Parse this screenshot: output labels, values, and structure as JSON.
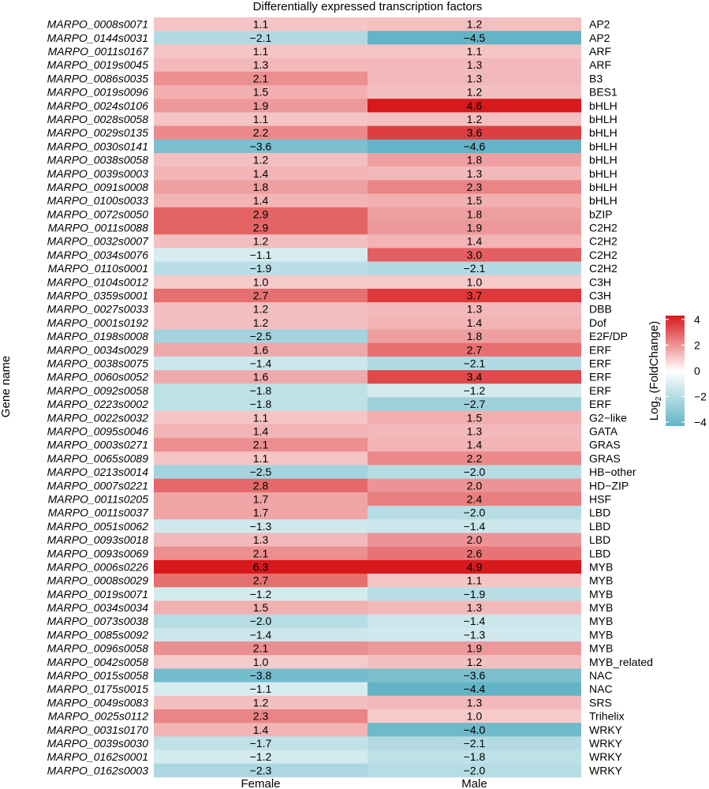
{
  "chart_data": {
    "type": "heatmap",
    "title": "Differentially expressed transcription factors",
    "ylabel": "Gene name",
    "columns": [
      "Female",
      "Male"
    ],
    "rows": [
      {
        "gene": "MARPO_0008s0071",
        "family": "AP2",
        "values": [
          1.1,
          1.2
        ]
      },
      {
        "gene": "MARPO_0144s0031",
        "family": "AP2",
        "values": [
          -2.1,
          -4.5
        ]
      },
      {
        "gene": "MARPO_0011s0167",
        "family": "ARF",
        "values": [
          1.1,
          1.1
        ]
      },
      {
        "gene": "MARPO_0019s0045",
        "family": "ARF",
        "values": [
          1.3,
          1.3
        ]
      },
      {
        "gene": "MARPO_0086s0035",
        "family": "B3",
        "values": [
          2.1,
          1.3
        ]
      },
      {
        "gene": "MARPO_0019s0096",
        "family": "BES1",
        "values": [
          1.5,
          1.2
        ]
      },
      {
        "gene": "MARPO_0024s0106",
        "family": "bHLH",
        "values": [
          1.9,
          4.6
        ]
      },
      {
        "gene": "MARPO_0028s0058",
        "family": "bHLH",
        "values": [
          1.1,
          1.2
        ]
      },
      {
        "gene": "MARPO_0029s0135",
        "family": "bHLH",
        "values": [
          2.2,
          3.6
        ]
      },
      {
        "gene": "MARPO_0030s0141",
        "family": "bHLH",
        "values": [
          -3.6,
          -4.6
        ]
      },
      {
        "gene": "MARPO_0038s0058",
        "family": "bHLH",
        "values": [
          1.2,
          1.8
        ]
      },
      {
        "gene": "MARPO_0039s0003",
        "family": "bHLH",
        "values": [
          1.4,
          1.3
        ]
      },
      {
        "gene": "MARPO_0091s0008",
        "family": "bHLH",
        "values": [
          1.8,
          2.3
        ]
      },
      {
        "gene": "MARPO_0100s0033",
        "family": "bHLH",
        "values": [
          1.4,
          1.5
        ]
      },
      {
        "gene": "MARPO_0072s0050",
        "family": "bZIP",
        "values": [
          2.9,
          1.8
        ]
      },
      {
        "gene": "MARPO_0011s0088",
        "family": "C2H2",
        "values": [
          2.9,
          1.9
        ]
      },
      {
        "gene": "MARPO_0032s0007",
        "family": "C2H2",
        "values": [
          1.2,
          1.4
        ]
      },
      {
        "gene": "MARPO_0034s0076",
        "family": "C2H2",
        "values": [
          -1.1,
          3.0
        ]
      },
      {
        "gene": "MARPO_0110s0001",
        "family": "C2H2",
        "values": [
          -1.9,
          -2.1
        ]
      },
      {
        "gene": "MARPO_0104s0012",
        "family": "C3H",
        "values": [
          1.0,
          1.0
        ]
      },
      {
        "gene": "MARPO_0359s0001",
        "family": "C3H",
        "values": [
          2.7,
          3.7
        ]
      },
      {
        "gene": "MARPO_0027s0033",
        "family": "DBB",
        "values": [
          1.2,
          1.3
        ]
      },
      {
        "gene": "MARPO_0001s0192",
        "family": "Dof",
        "values": [
          1.2,
          1.4
        ]
      },
      {
        "gene": "MARPO_0198s0008",
        "family": "E2F/DP",
        "values": [
          -2.5,
          1.8
        ]
      },
      {
        "gene": "MARPO_0034s0029",
        "family": "ERF",
        "values": [
          1.6,
          2.7
        ]
      },
      {
        "gene": "MARPO_0038s0075",
        "family": "ERF",
        "values": [
          -1.4,
          -2.1
        ]
      },
      {
        "gene": "MARPO_0060s0052",
        "family": "ERF",
        "values": [
          1.6,
          3.4
        ]
      },
      {
        "gene": "MARPO_0092s0058",
        "family": "ERF",
        "values": [
          -1.8,
          -1.2
        ]
      },
      {
        "gene": "MARPO_0223s0002",
        "family": "ERF",
        "values": [
          -1.8,
          -2.7
        ]
      },
      {
        "gene": "MARPO_0022s0032",
        "family": "G2−like",
        "values": [
          1.1,
          1.5
        ]
      },
      {
        "gene": "MARPO_0095s0046",
        "family": "GATA",
        "values": [
          1.4,
          1.3
        ]
      },
      {
        "gene": "MARPO_0003s0271",
        "family": "GRAS",
        "values": [
          2.1,
          1.4
        ]
      },
      {
        "gene": "MARPO_0065s0089",
        "family": "GRAS",
        "values": [
          1.1,
          2.2
        ]
      },
      {
        "gene": "MARPO_0213s0014",
        "family": "HB−other",
        "values": [
          -2.5,
          -2.0
        ]
      },
      {
        "gene": "MARPO_0007s0221",
        "family": "HD−ZIP",
        "values": [
          2.8,
          2.0
        ]
      },
      {
        "gene": "MARPO_0011s0205",
        "family": "HSF",
        "values": [
          1.7,
          2.4
        ]
      },
      {
        "gene": "MARPO_0011s0037",
        "family": "LBD",
        "values": [
          1.7,
          -2.0
        ]
      },
      {
        "gene": "MARPO_0051s0062",
        "family": "LBD",
        "values": [
          -1.3,
          -1.4
        ]
      },
      {
        "gene": "MARPO_0093s0018",
        "family": "LBD",
        "values": [
          1.3,
          2.0
        ]
      },
      {
        "gene": "MARPO_0093s0069",
        "family": "LBD",
        "values": [
          2.1,
          2.6
        ]
      },
      {
        "gene": "MARPO_0006s0226",
        "family": "MYB",
        "values": [
          6.3,
          4.9
        ]
      },
      {
        "gene": "MARPO_0008s0029",
        "family": "MYB",
        "values": [
          2.7,
          1.1
        ]
      },
      {
        "gene": "MARPO_0019s0071",
        "family": "MYB",
        "values": [
          -1.2,
          -1.9
        ]
      },
      {
        "gene": "MARPO_0034s0034",
        "family": "MYB",
        "values": [
          1.5,
          1.3
        ]
      },
      {
        "gene": "MARPO_0073s0038",
        "family": "MYB",
        "values": [
          -2.0,
          -1.4
        ]
      },
      {
        "gene": "MARPO_0085s0092",
        "family": "MYB",
        "values": [
          -1.4,
          -1.3
        ]
      },
      {
        "gene": "MARPO_0096s0058",
        "family": "MYB",
        "values": [
          2.1,
          1.9
        ]
      },
      {
        "gene": "MARPO_0042s0058",
        "family": "MYB_related",
        "values": [
          1.0,
          1.2
        ]
      },
      {
        "gene": "MARPO_0015s0058",
        "family": "NAC",
        "values": [
          -3.8,
          -3.6
        ]
      },
      {
        "gene": "MARPO_0175s0015",
        "family": "NAC",
        "values": [
          -1.1,
          -4.4
        ]
      },
      {
        "gene": "MARPO_0049s0083",
        "family": "SRS",
        "values": [
          1.2,
          1.3
        ]
      },
      {
        "gene": "MARPO_0025s0112",
        "family": "Trihelix",
        "values": [
          2.3,
          1.0
        ]
      },
      {
        "gene": "MARPO_0031s0170",
        "family": "WRKY",
        "values": [
          1.4,
          -4.0
        ]
      },
      {
        "gene": "MARPO_0039s0030",
        "family": "WRKY",
        "values": [
          -1.7,
          -2.1
        ]
      },
      {
        "gene": "MARPO_0162s0001",
        "family": "WRKY",
        "values": [
          -1.2,
          -1.8
        ]
      },
      {
        "gene": "MARPO_0162s0003",
        "family": "WRKY",
        "values": [
          -2.3,
          -2.0
        ]
      }
    ],
    "legend": {
      "title_base": "Log",
      "title_sub": "2",
      "title_rest": " (FoldChange)",
      "ticks": [
        "4",
        "2",
        "0",
        "−2",
        "−4"
      ],
      "tick_values": [
        4,
        2,
        0,
        -2,
        -4
      ],
      "range": [
        -4.3,
        4.3
      ],
      "placement": "right"
    },
    "colors": {
      "high": "#d7191c",
      "mid": "#ffffff",
      "low": "#63b4c6"
    }
  }
}
